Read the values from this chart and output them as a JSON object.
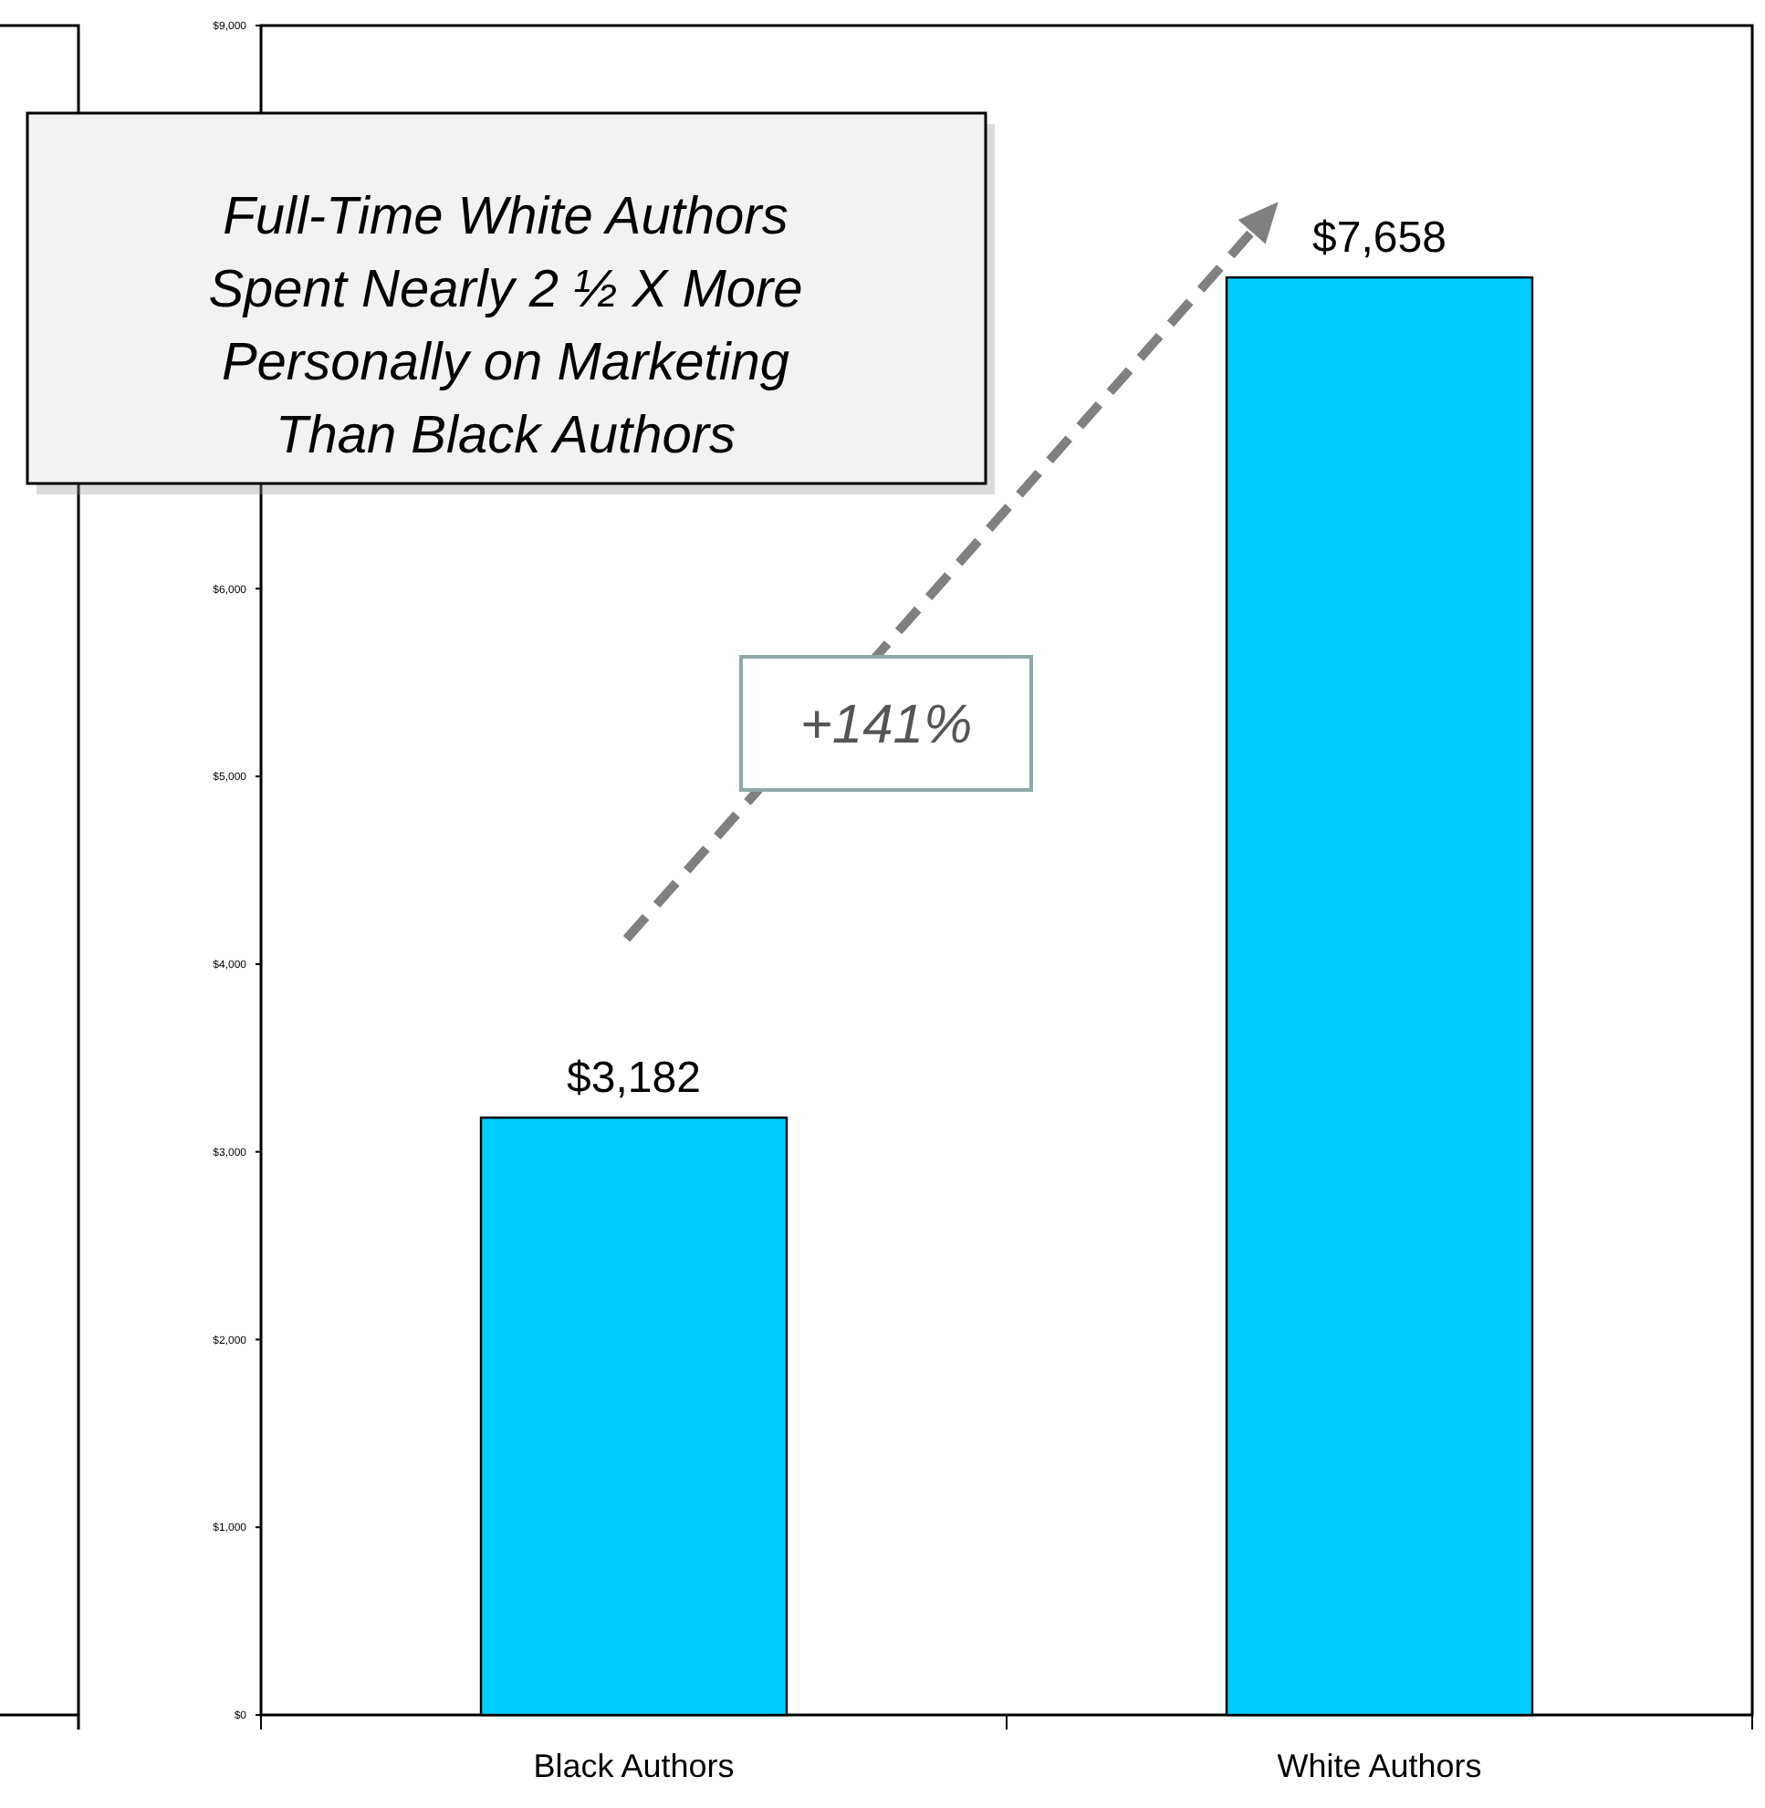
{
  "chart_data": {
    "type": "bar",
    "categories": [
      "Black Authors",
      "White Authors"
    ],
    "values": [
      3182,
      7658
    ],
    "color": "#00ccff",
    "value_labels": [
      "$3,182",
      "$7,658"
    ],
    "ylim": [
      0,
      9000
    ],
    "yticks": [
      {
        "value": 0,
        "label": "$0"
      },
      {
        "value": 1000,
        "label": "$1,000"
      },
      {
        "value": 2000,
        "label": "$2,000"
      },
      {
        "value": 3000,
        "label": "$3,000"
      },
      {
        "value": 4000,
        "label": "$4,000"
      },
      {
        "value": 5000,
        "label": "$5,000"
      },
      {
        "value": 6000,
        "label": "$6,000"
      },
      {
        "value": 9000,
        "label": "$9,000"
      }
    ],
    "annotations": [
      "Full-Time White Authors Spent Nearly 2 ½ X More Personally on Marketing Than Black Authors",
      "+141%"
    ],
    "grid": false
  }
}
